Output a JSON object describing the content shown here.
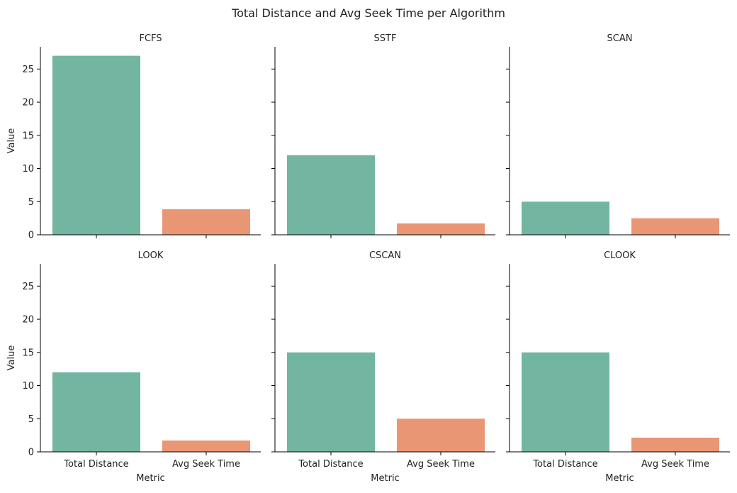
{
  "chart_data": {
    "type": "bar",
    "title": "Total Distance and Avg Seek Time per Algorithm",
    "xlabel": "Metric",
    "ylabel": "Value",
    "categories": [
      "Total Distance",
      "Avg Seek Time"
    ],
    "ylim": [
      0,
      28.35
    ],
    "yticks": [
      0,
      5,
      10,
      15,
      20,
      25
    ],
    "grid": false,
    "colors": [
      "#72b6a1",
      "#e99675"
    ],
    "panels": [
      {
        "name": "FCFS",
        "values": [
          27,
          3.86
        ]
      },
      {
        "name": "SSTF",
        "values": [
          12,
          1.71
        ]
      },
      {
        "name": "SCAN",
        "values": [
          5,
          2.5
        ]
      },
      {
        "name": "LOOK",
        "values": [
          12,
          1.71
        ]
      },
      {
        "name": "CSCAN",
        "values": [
          15,
          5
        ]
      },
      {
        "name": "CLOOK",
        "values": [
          15,
          2.14
        ]
      }
    ]
  }
}
